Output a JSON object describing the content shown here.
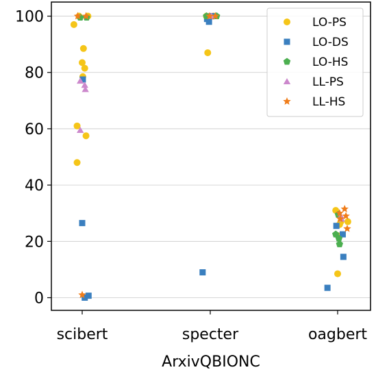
{
  "chart_data": {
    "type": "scatter",
    "xlabel": "ArxivQBIONC",
    "ylabel": "",
    "categories": [
      "scibert",
      "specter",
      "oagbert"
    ],
    "yticks": [
      0,
      20,
      40,
      60,
      80,
      100
    ],
    "ylim": [
      -4.5,
      105
    ],
    "grid": "horizontal",
    "legend_position": "top-right",
    "series": [
      {
        "name": "LO-PS",
        "color": "#f5c518",
        "marker": "circle",
        "points": [
          {
            "x": "scibert",
            "jitter": -0.13,
            "y": 97
          },
          {
            "x": "scibert",
            "jitter": -0.08,
            "y": 61
          },
          {
            "x": "scibert",
            "jitter": -0.08,
            "y": 48
          },
          {
            "x": "scibert",
            "jitter": 0.0,
            "y": 83.5
          },
          {
            "x": "scibert",
            "jitter": 0.02,
            "y": 88.5
          },
          {
            "x": "scibert",
            "jitter": 0.04,
            "y": 81.5
          },
          {
            "x": "scibert",
            "jitter": 0.01,
            "y": 78.5
          },
          {
            "x": "scibert",
            "jitter": 0.06,
            "y": 57.5
          },
          {
            "x": "scibert",
            "jitter": 0.09,
            "y": 100
          },
          {
            "x": "scibert",
            "jitter": -0.05,
            "y": 100
          },
          {
            "x": "specter",
            "jitter": -0.04,
            "y": 87
          },
          {
            "x": "specter",
            "jitter": -0.06,
            "y": 100
          },
          {
            "x": "specter",
            "jitter": 0.05,
            "y": 100
          },
          {
            "x": "oagbert",
            "jitter": -0.03,
            "y": 31
          },
          {
            "x": "oagbert",
            "jitter": 0.0,
            "y": 8.5
          },
          {
            "x": "oagbert",
            "jitter": 0.05,
            "y": 27
          },
          {
            "x": "oagbert",
            "jitter": 0.16,
            "y": 27
          },
          {
            "x": "oagbert",
            "jitter": 0.03,
            "y": 26
          },
          {
            "x": "oagbert",
            "jitter": 0.01,
            "y": 22
          }
        ]
      },
      {
        "name": "LO-DS",
        "color": "#3a7fbf",
        "marker": "square",
        "points": [
          {
            "x": "scibert",
            "jitter": 0.0,
            "y": 26.5
          },
          {
            "x": "scibert",
            "jitter": 0.01,
            "y": 77.5
          },
          {
            "x": "scibert",
            "jitter": 0.04,
            "y": 0
          },
          {
            "x": "scibert",
            "jitter": 0.1,
            "y": 0.7
          },
          {
            "x": "specter",
            "jitter": -0.12,
            "y": 9
          },
          {
            "x": "specter",
            "jitter": -0.05,
            "y": 99
          },
          {
            "x": "specter",
            "jitter": -0.02,
            "y": 98
          },
          {
            "x": "specter",
            "jitter": 0.02,
            "y": 100
          },
          {
            "x": "oagbert",
            "jitter": -0.16,
            "y": 3.5
          },
          {
            "x": "oagbert",
            "jitter": -0.02,
            "y": 25.5
          },
          {
            "x": "oagbert",
            "jitter": 0.08,
            "y": 22.5
          },
          {
            "x": "oagbert",
            "jitter": 0.09,
            "y": 14.5
          }
        ]
      },
      {
        "name": "LO-HS",
        "color": "#4caf50",
        "marker": "pentagon",
        "points": [
          {
            "x": "scibert",
            "jitter": -0.03,
            "y": 99.5
          },
          {
            "x": "scibert",
            "jitter": 0.07,
            "y": 99.5
          },
          {
            "x": "specter",
            "jitter": 0.1,
            "y": 100
          },
          {
            "x": "specter",
            "jitter": -0.06,
            "y": 100
          },
          {
            "x": "oagbert",
            "jitter": -0.03,
            "y": 22.5
          },
          {
            "x": "oagbert",
            "jitter": 0.02,
            "y": 21
          },
          {
            "x": "oagbert",
            "jitter": 0.03,
            "y": 19
          },
          {
            "x": "oagbert",
            "jitter": 0.01,
            "y": 29.5
          }
        ]
      },
      {
        "name": "LL-PS",
        "color": "#cc88cc",
        "marker": "triangle",
        "points": [
          {
            "x": "scibert",
            "jitter": -0.03,
            "y": 77
          },
          {
            "x": "scibert",
            "jitter": -0.03,
            "y": 59.5
          },
          {
            "x": "scibert",
            "jitter": 0.04,
            "y": 75.5
          },
          {
            "x": "scibert",
            "jitter": 0.05,
            "y": 74
          },
          {
            "x": "specter",
            "jitter": 0.02,
            "y": 100
          },
          {
            "x": "oagbert",
            "jitter": 0.06,
            "y": 28
          },
          {
            "x": "oagbert",
            "jitter": 0.05,
            "y": 29
          }
        ]
      },
      {
        "name": "LL-HS",
        "color": "#f07d1a",
        "marker": "star",
        "points": [
          {
            "x": "scibert",
            "jitter": -0.07,
            "y": 100
          },
          {
            "x": "scibert",
            "jitter": 0.06,
            "y": 100
          },
          {
            "x": "scibert",
            "jitter": 0.0,
            "y": 1
          },
          {
            "x": "specter",
            "jitter": -0.01,
            "y": 100
          },
          {
            "x": "specter",
            "jitter": 0.08,
            "y": 100
          },
          {
            "x": "oagbert",
            "jitter": 0.03,
            "y": 30
          },
          {
            "x": "oagbert",
            "jitter": 0.11,
            "y": 31.5
          },
          {
            "x": "oagbert",
            "jitter": 0.13,
            "y": 29
          },
          {
            "x": "oagbert",
            "jitter": 0.15,
            "y": 24.5
          },
          {
            "x": "oagbert",
            "jitter": 0.04,
            "y": 28
          }
        ]
      }
    ]
  }
}
